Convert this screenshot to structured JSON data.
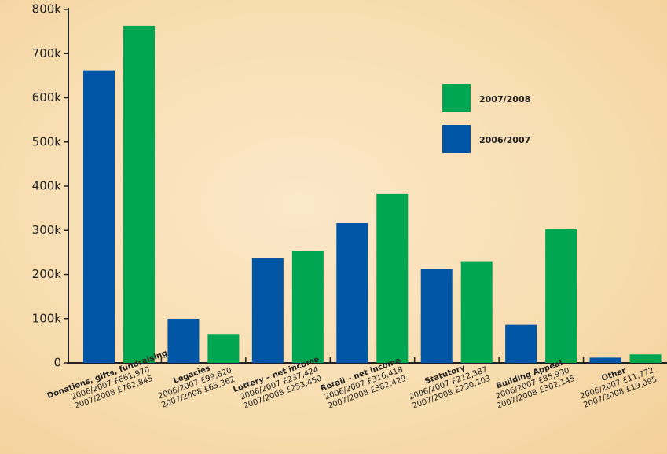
{
  "chart_data": {
    "type": "bar",
    "categories": [
      "Donations, gifts, fundraising",
      "Legacies",
      "Lottery – net income",
      "Retail – net income",
      "Statutory",
      "Building Appeal",
      "Other"
    ],
    "series": [
      {
        "name": "2006/2007",
        "color": "#0055a5",
        "values": [
          661970,
          99620,
          237424,
          316418,
          212387,
          85930,
          11772
        ],
        "value_labels": [
          "2006/2007 £661,970",
          "2006/2007 £99,620",
          "2006/2007 £237,424",
          "2006/2007 £316,418",
          "2006/2007 £212,387",
          "2006/2007 £85,930",
          "2006/2007 £11,772"
        ]
      },
      {
        "name": "2007/2008",
        "color": "#00a651",
        "values": [
          762845,
          65362,
          253450,
          382429,
          230103,
          302145,
          19095
        ],
        "value_labels": [
          "2007/2008 £762,845",
          "2007/2008 £65,362",
          "2007/2008 £253,450",
          "2007/2008 £382,429",
          "2007/2008 £230,103",
          "2007/2008 £302,145",
          "2007/2008 £19,095"
        ]
      }
    ],
    "ylim": [
      0,
      800000
    ],
    "yticks": [
      0,
      {
        "value": 100000,
        "label": "100k"
      },
      {
        "value": 200000,
        "label": "200k"
      },
      {
        "value": 300000,
        "label": "300k"
      },
      {
        "value": 400000,
        "label": "400k"
      },
      {
        "value": 500000,
        "label": "500k"
      },
      {
        "value": 600000,
        "label": "600k"
      },
      {
        "value": 700000,
        "label": "700k"
      },
      {
        "value": 800000,
        "label": "800k"
      }
    ],
    "grid": false
  }
}
